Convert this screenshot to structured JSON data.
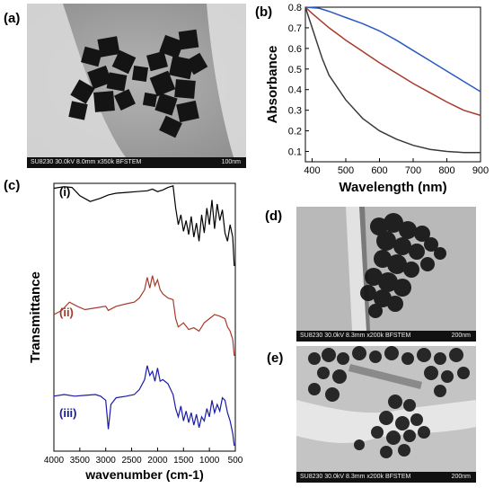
{
  "panels": {
    "a": {
      "label": "(a)",
      "caption": "SU8230 30.0kV 8.0mm x350k BFSTEM",
      "scale": "100nm"
    },
    "b": {
      "label": "(b)"
    },
    "c": {
      "label": "(c)",
      "curve_labels": [
        "(i)",
        "(ii)",
        "(iii)"
      ]
    },
    "d": {
      "label": "(d)",
      "caption": "SU8230 30.0kV 8.3mm x200k BFSTEM",
      "scale": "200nm"
    },
    "e": {
      "label": "(e)",
      "caption": "SU8230 30.0kV 8.3mm x200k BFSTEM",
      "scale": "200nm"
    }
  },
  "chart_data": [
    {
      "panel": "b",
      "type": "line",
      "xlabel": "Wavelength (nm)",
      "ylabel": "Absorbance",
      "xlim": [
        380,
        900
      ],
      "ylim": [
        0.05,
        0.8
      ],
      "xticks": [
        400,
        500,
        600,
        700,
        800,
        900
      ],
      "yticks": [
        0.1,
        0.2,
        0.3,
        0.4,
        0.5,
        0.6,
        0.7,
        0.8
      ],
      "series": [
        {
          "color": "#2b59c3",
          "x": [
            380,
            420,
            450,
            500,
            550,
            600,
            650,
            700,
            750,
            800,
            850,
            900
          ],
          "y": [
            0.8,
            0.795,
            0.78,
            0.75,
            0.72,
            0.685,
            0.64,
            0.59,
            0.54,
            0.49,
            0.44,
            0.39
          ]
        },
        {
          "color": "#a83a2a",
          "x": [
            380,
            400,
            450,
            500,
            550,
            600,
            650,
            700,
            750,
            800,
            850,
            900
          ],
          "y": [
            0.8,
            0.77,
            0.7,
            0.64,
            0.585,
            0.53,
            0.48,
            0.43,
            0.385,
            0.34,
            0.3,
            0.275
          ]
        },
        {
          "color": "#3a3a3a",
          "x": [
            380,
            400,
            430,
            450,
            500,
            550,
            600,
            650,
            700,
            750,
            800,
            850,
            900
          ],
          "y": [
            0.8,
            0.7,
            0.55,
            0.47,
            0.35,
            0.26,
            0.2,
            0.16,
            0.13,
            0.11,
            0.1,
            0.095,
            0.095
          ]
        }
      ]
    },
    {
      "panel": "c",
      "type": "line",
      "xlabel": "wavenumber (cm-1)",
      "ylabel": "Transmittance",
      "xlim": [
        4000,
        500
      ],
      "xticks": [
        4000,
        3500,
        3000,
        2500,
        2000,
        1500,
        1000,
        500
      ],
      "series": [
        {
          "label": "(i)",
          "color": "#000000",
          "x": [
            4000,
            3800,
            3650,
            3500,
            3300,
            3100,
            2950,
            2800,
            2600,
            2400,
            2200,
            2100,
            2000,
            1900,
            1800,
            1700,
            1650,
            1600,
            1550,
            1500,
            1450,
            1400,
            1350,
            1300,
            1250,
            1200,
            1150,
            1100,
            1050,
            1000,
            950,
            900,
            850,
            800,
            750,
            700,
            650,
            600,
            550,
            520
          ],
          "y": [
            0.94,
            0.96,
            0.95,
            0.85,
            0.78,
            0.82,
            0.86,
            0.88,
            0.89,
            0.9,
            0.91,
            0.93,
            0.9,
            0.92,
            0.95,
            0.97,
            0.7,
            0.5,
            0.62,
            0.42,
            0.55,
            0.38,
            0.6,
            0.35,
            0.52,
            0.3,
            0.62,
            0.4,
            0.7,
            0.5,
            0.8,
            0.45,
            0.75,
            0.55,
            0.68,
            0.4,
            0.3,
            0.5,
            0.35,
            0.0
          ]
        },
        {
          "label": "(ii)",
          "color": "#a83a2a",
          "x": [
            4000,
            3850,
            3700,
            3550,
            3400,
            3200,
            3000,
            2950,
            2800,
            2600,
            2450,
            2350,
            2250,
            2200,
            2150,
            2100,
            2050,
            2000,
            1950,
            1900,
            1800,
            1700,
            1650,
            1600,
            1500,
            1400,
            1300,
            1200,
            1100,
            1000,
            900,
            800,
            700,
            650,
            600,
            550,
            520
          ],
          "y": [
            0.5,
            0.55,
            0.65,
            0.6,
            0.56,
            0.58,
            0.6,
            0.55,
            0.6,
            0.63,
            0.65,
            0.7,
            0.8,
            0.95,
            0.82,
            0.97,
            0.85,
            0.92,
            0.8,
            0.75,
            0.7,
            0.68,
            0.45,
            0.35,
            0.4,
            0.32,
            0.34,
            0.3,
            0.4,
            0.45,
            0.5,
            0.48,
            0.45,
            0.35,
            0.3,
            0.2,
            0.0
          ]
        },
        {
          "label": "(iii)",
          "color": "#1a1aaa",
          "x": [
            4000,
            3800,
            3600,
            3400,
            3200,
            3100,
            3000,
            2950,
            2900,
            2800,
            2600,
            2450,
            2350,
            2250,
            2200,
            2150,
            2100,
            2050,
            2000,
            1950,
            1900,
            1800,
            1700,
            1650,
            1600,
            1550,
            1500,
            1450,
            1400,
            1350,
            1300,
            1250,
            1200,
            1150,
            1100,
            1050,
            1000,
            950,
            900,
            850,
            800,
            750,
            700,
            650,
            600,
            550,
            520
          ],
          "y": [
            0.6,
            0.62,
            0.6,
            0.61,
            0.62,
            0.6,
            0.55,
            0.2,
            0.5,
            0.58,
            0.6,
            0.62,
            0.68,
            0.8,
            0.97,
            0.85,
            0.9,
            0.78,
            0.94,
            0.78,
            0.8,
            0.75,
            0.62,
            0.45,
            0.35,
            0.48,
            0.3,
            0.42,
            0.28,
            0.4,
            0.25,
            0.38,
            0.22,
            0.35,
            0.3,
            0.45,
            0.35,
            0.55,
            0.4,
            0.5,
            0.42,
            0.58,
            0.55,
            0.4,
            0.3,
            0.15,
            0.0
          ]
        }
      ]
    }
  ]
}
